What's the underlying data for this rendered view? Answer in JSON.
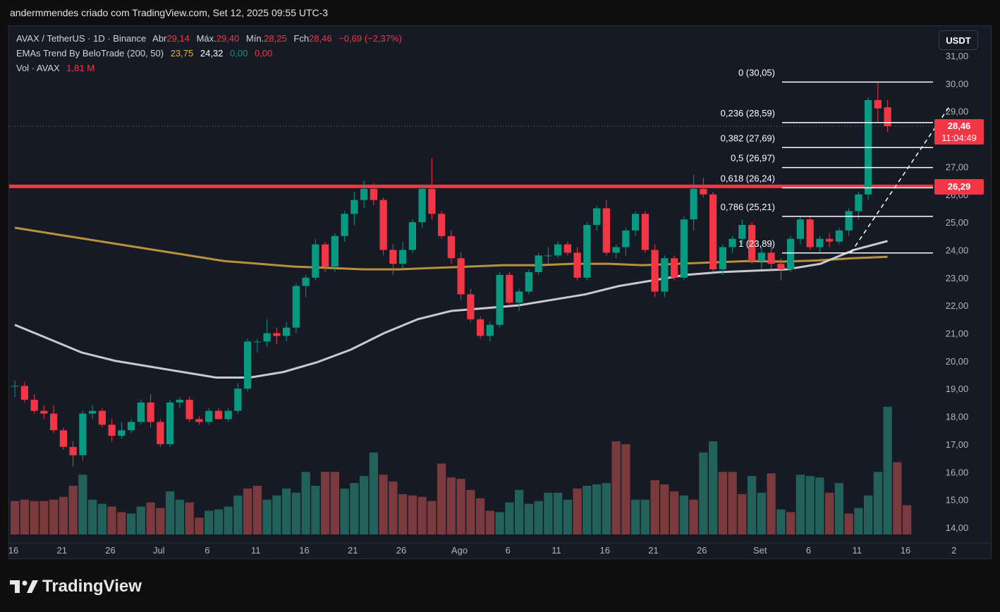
{
  "caption": "andermmendes criado com TradingView.com, Set 12, 2025 09:55 UTC-3",
  "currency": "USDT",
  "brand": "TradingView",
  "legend": {
    "symbol": "AVAX / TetherUS · 1D · Binance",
    "open_label": "Abr",
    "open": "29,14",
    "high_label": "Máx.",
    "high": "29,40",
    "low_label": "Mín.",
    "low": "28,25",
    "close_label": "Fch",
    "close": "28,46",
    "change": "−0,69 (−2,37%)",
    "ema_name": "EMAs Trend By BeloTrade (200, 50)",
    "ema_v1": "23,75",
    "ema_v2": "24,32",
    "ema_v3": "0,00",
    "ema_v4": "0,00",
    "vol_name": "Vol · AVAX",
    "vol_value": "1,81 M"
  },
  "price_tag": {
    "value": "28,46",
    "countdown": "11:04:49"
  },
  "resistance_tag": "26,29",
  "chart_data": {
    "type": "candlestick",
    "title": "AVAX / TetherUS · 1D · Binance",
    "y_ticks": [
      "31,00",
      "30,00",
      "29,00",
      "28,00",
      "27,00",
      "26,00",
      "25,00",
      "24,00",
      "23,00",
      "22,00",
      "21,00",
      "20,00",
      "19,00",
      "18,00",
      "17,00",
      "16,00",
      "15,00",
      "14,00"
    ],
    "y_tick_values": [
      31,
      30,
      29,
      28,
      27,
      26,
      25,
      24,
      23,
      22,
      21,
      20,
      19,
      18,
      17,
      16,
      15,
      14
    ],
    "x_ticks": [
      {
        "label": "16",
        "idx": 0
      },
      {
        "label": "21",
        "idx": 5
      },
      {
        "label": "26",
        "idx": 10
      },
      {
        "label": "Jul",
        "idx": 15
      },
      {
        "label": "6",
        "idx": 20
      },
      {
        "label": "11",
        "idx": 25
      },
      {
        "label": "16",
        "idx": 30
      },
      {
        "label": "21",
        "idx": 35
      },
      {
        "label": "26",
        "idx": 40
      },
      {
        "label": "Ago",
        "idx": 46
      },
      {
        "label": "6",
        "idx": 51
      },
      {
        "label": "11",
        "idx": 56
      },
      {
        "label": "16",
        "idx": 61
      },
      {
        "label": "21",
        "idx": 66
      },
      {
        "label": "26",
        "idx": 71
      },
      {
        "label": "Set",
        "idx": 77
      },
      {
        "label": "6",
        "idx": 82
      },
      {
        "label": "11",
        "idx": 87
      },
      {
        "label": "16",
        "idx": 92
      },
      {
        "label": "2",
        "idx": 97
      }
    ],
    "candles": [
      [
        19.1,
        19.3,
        18.7,
        19.1
      ],
      [
        19.1,
        19.25,
        18.5,
        18.6
      ],
      [
        18.6,
        18.8,
        18.1,
        18.2
      ],
      [
        18.2,
        18.4,
        17.9,
        18.1
      ],
      [
        18.1,
        18.4,
        17.4,
        17.5
      ],
      [
        17.5,
        17.6,
        16.8,
        16.9
      ],
      [
        16.9,
        17.1,
        16.2,
        16.6
      ],
      [
        16.6,
        18.2,
        16.4,
        18.1
      ],
      [
        18.1,
        18.4,
        17.9,
        18.2
      ],
      [
        18.2,
        18.3,
        17.6,
        17.7
      ],
      [
        17.7,
        17.9,
        17.1,
        17.3
      ],
      [
        17.3,
        17.8,
        17.2,
        17.5
      ],
      [
        17.5,
        17.9,
        17.4,
        17.8
      ],
      [
        17.8,
        18.6,
        17.7,
        18.5
      ],
      [
        18.5,
        18.8,
        17.6,
        17.8
      ],
      [
        17.8,
        17.9,
        16.9,
        17.0
      ],
      [
        17.0,
        18.6,
        16.9,
        18.5
      ],
      [
        18.5,
        18.7,
        18.3,
        18.6
      ],
      [
        18.6,
        18.7,
        17.8,
        17.9
      ],
      [
        17.9,
        18.0,
        17.7,
        17.8
      ],
      [
        17.8,
        18.3,
        17.7,
        18.2
      ],
      [
        18.2,
        18.3,
        17.9,
        17.9
      ],
      [
        17.9,
        18.3,
        17.8,
        18.2
      ],
      [
        18.2,
        19.2,
        18.1,
        19.0
      ],
      [
        19.0,
        20.8,
        18.9,
        20.7
      ],
      [
        20.7,
        20.8,
        20.3,
        20.7
      ],
      [
        20.7,
        21.5,
        20.5,
        21.0
      ],
      [
        21.0,
        21.2,
        20.6,
        20.9
      ],
      [
        20.9,
        21.4,
        20.7,
        21.2
      ],
      [
        21.2,
        22.8,
        21.0,
        22.7
      ],
      [
        22.7,
        23.1,
        22.3,
        23.0
      ],
      [
        23.0,
        24.4,
        22.9,
        24.2
      ],
      [
        24.2,
        24.3,
        23.2,
        23.4
      ],
      [
        23.4,
        24.6,
        23.2,
        24.5
      ],
      [
        24.5,
        25.4,
        24.3,
        25.3
      ],
      [
        25.3,
        26.1,
        24.9,
        25.8
      ],
      [
        25.8,
        26.5,
        25.5,
        26.2
      ],
      [
        26.2,
        26.4,
        25.6,
        25.8
      ],
      [
        25.8,
        25.9,
        23.8,
        24.0
      ],
      [
        24.0,
        24.2,
        23.1,
        23.5
      ],
      [
        23.5,
        24.3,
        23.3,
        24.0
      ],
      [
        24.0,
        25.1,
        23.9,
        25.0
      ],
      [
        25.0,
        26.3,
        24.8,
        26.2
      ],
      [
        26.2,
        27.3,
        25.1,
        25.3
      ],
      [
        25.3,
        25.4,
        24.4,
        24.5
      ],
      [
        24.5,
        24.7,
        23.5,
        23.7
      ],
      [
        23.7,
        23.9,
        22.2,
        22.4
      ],
      [
        22.4,
        22.6,
        21.4,
        21.5
      ],
      [
        21.5,
        21.6,
        20.8,
        20.9
      ],
      [
        20.9,
        21.4,
        20.7,
        21.3
      ],
      [
        21.3,
        23.2,
        21.2,
        23.1
      ],
      [
        23.1,
        23.2,
        22.0,
        22.1
      ],
      [
        22.1,
        22.6,
        21.8,
        22.5
      ],
      [
        22.5,
        23.3,
        22.4,
        23.2
      ],
      [
        23.2,
        23.9,
        23.1,
        23.8
      ],
      [
        23.8,
        24.1,
        23.5,
        23.8
      ],
      [
        23.8,
        24.3,
        23.7,
        24.2
      ],
      [
        24.2,
        24.3,
        23.8,
        23.9
      ],
      [
        23.9,
        24.1,
        22.9,
        23.0
      ],
      [
        23.0,
        25.0,
        22.9,
        24.9
      ],
      [
        24.9,
        25.6,
        24.7,
        25.5
      ],
      [
        25.5,
        25.8,
        23.8,
        23.9
      ],
      [
        23.9,
        24.2,
        23.7,
        24.1
      ],
      [
        24.1,
        24.8,
        23.8,
        24.7
      ],
      [
        24.7,
        25.4,
        24.5,
        25.3
      ],
      [
        25.3,
        25.4,
        23.9,
        24.0
      ],
      [
        24.0,
        24.2,
        22.3,
        22.5
      ],
      [
        22.5,
        23.8,
        22.3,
        23.7
      ],
      [
        23.7,
        23.8,
        22.9,
        23.0
      ],
      [
        23.0,
        25.2,
        22.9,
        25.1
      ],
      [
        25.1,
        26.7,
        24.7,
        26.2
      ],
      [
        26.2,
        26.6,
        25.9,
        26.0
      ],
      [
        26.0,
        26.1,
        23.2,
        23.3
      ],
      [
        23.3,
        24.2,
        23.1,
        24.1
      ],
      [
        24.1,
        24.5,
        23.9,
        24.4
      ],
      [
        24.4,
        25.1,
        24.2,
        24.9
      ],
      [
        24.9,
        25.0,
        23.5,
        23.6
      ],
      [
        23.6,
        24.1,
        23.3,
        23.9
      ],
      [
        23.9,
        24.2,
        23.3,
        23.5
      ],
      [
        23.5,
        23.7,
        22.9,
        23.3
      ],
      [
        23.3,
        24.5,
        23.2,
        24.4
      ],
      [
        24.4,
        25.2,
        24.2,
        25.1
      ],
      [
        25.1,
        25.2,
        24.0,
        24.1
      ],
      [
        24.1,
        24.5,
        23.9,
        24.4
      ],
      [
        24.4,
        24.6,
        24.1,
        24.3
      ],
      [
        24.3,
        24.8,
        24.2,
        24.7
      ],
      [
        24.7,
        25.5,
        24.5,
        25.4
      ],
      [
        25.4,
        26.1,
        25.1,
        26.0
      ],
      [
        26.0,
        29.5,
        25.8,
        29.4
      ],
      [
        29.4,
        30.05,
        28.6,
        29.1
      ],
      [
        29.14,
        29.4,
        28.25,
        28.46
      ]
    ],
    "ema200": [
      24.8,
      24.6,
      24.4,
      24.2,
      24.0,
      23.8,
      23.6,
      23.5,
      23.4,
      23.35,
      23.3,
      23.3,
      23.35,
      23.4,
      23.45,
      23.45,
      23.5,
      23.5,
      23.45,
      23.5,
      23.55,
      23.6,
      23.58,
      23.62,
      23.7,
      23.75
    ],
    "ema50": [
      21.3,
      20.8,
      20.3,
      20.0,
      19.8,
      19.6,
      19.4,
      19.4,
      19.6,
      19.95,
      20.4,
      21.0,
      21.5,
      21.8,
      21.9,
      22.0,
      22.2,
      22.4,
      22.7,
      22.9,
      23.1,
      23.2,
      23.25,
      23.3,
      23.5,
      24.0,
      24.32
    ],
    "volumes": [
      [
        14.95,
        "r"
      ],
      [
        15.0,
        "r"
      ],
      [
        14.95,
        "r"
      ],
      [
        14.95,
        "r"
      ],
      [
        15.0,
        "r"
      ],
      [
        15.1,
        "r"
      ],
      [
        15.5,
        "r"
      ],
      [
        15.9,
        "g"
      ],
      [
        15.0,
        "g"
      ],
      [
        14.85,
        "g"
      ],
      [
        14.75,
        "r"
      ],
      [
        14.55,
        "r"
      ],
      [
        14.5,
        "g"
      ],
      [
        14.75,
        "g"
      ],
      [
        14.9,
        "r"
      ],
      [
        14.7,
        "r"
      ],
      [
        15.3,
        "g"
      ],
      [
        15.0,
        "g"
      ],
      [
        14.9,
        "r"
      ],
      [
        14.35,
        "r"
      ],
      [
        14.6,
        "g"
      ],
      [
        14.65,
        "g"
      ],
      [
        14.75,
        "g"
      ],
      [
        15.15,
        "g"
      ],
      [
        15.4,
        "r"
      ],
      [
        15.5,
        "r"
      ],
      [
        15.0,
        "g"
      ],
      [
        15.15,
        "g"
      ],
      [
        15.4,
        "g"
      ],
      [
        15.25,
        "g"
      ],
      [
        16.0,
        "g"
      ],
      [
        15.5,
        "g"
      ],
      [
        16.0,
        "r"
      ],
      [
        16.0,
        "r"
      ],
      [
        15.4,
        "g"
      ],
      [
        15.6,
        "g"
      ],
      [
        15.85,
        "g"
      ],
      [
        16.7,
        "g"
      ],
      [
        15.9,
        "r"
      ],
      [
        15.65,
        "r"
      ],
      [
        15.2,
        "r"
      ],
      [
        15.15,
        "r"
      ],
      [
        15.1,
        "r"
      ],
      [
        14.95,
        "r"
      ],
      [
        16.3,
        "r"
      ],
      [
        15.8,
        "r"
      ],
      [
        15.75,
        "r"
      ],
      [
        15.35,
        "r"
      ],
      [
        15.05,
        "r"
      ],
      [
        14.6,
        "r"
      ],
      [
        14.55,
        "g"
      ],
      [
        14.9,
        "g"
      ],
      [
        15.35,
        "g"
      ],
      [
        14.85,
        "g"
      ],
      [
        14.95,
        "g"
      ],
      [
        15.25,
        "g"
      ],
      [
        15.25,
        "g"
      ],
      [
        15.0,
        "g"
      ],
      [
        15.4,
        "r"
      ],
      [
        15.5,
        "g"
      ],
      [
        15.55,
        "g"
      ],
      [
        15.6,
        "g"
      ],
      [
        17.1,
        "r"
      ],
      [
        17.0,
        "r"
      ],
      [
        15.0,
        "g"
      ],
      [
        15.0,
        "g"
      ],
      [
        15.7,
        "r"
      ],
      [
        15.55,
        "r"
      ],
      [
        15.3,
        "r"
      ],
      [
        15.15,
        "g"
      ],
      [
        15.0,
        "r"
      ],
      [
        16.7,
        "g"
      ],
      [
        17.1,
        "g"
      ],
      [
        16.0,
        "r"
      ],
      [
        16.0,
        "r"
      ],
      [
        15.2,
        "r"
      ],
      [
        15.85,
        "g"
      ],
      [
        15.25,
        "g"
      ],
      [
        15.95,
        "r"
      ],
      [
        14.65,
        "g"
      ],
      [
        14.55,
        "r"
      ],
      [
        15.9,
        "g"
      ],
      [
        15.85,
        "g"
      ],
      [
        15.8,
        "g"
      ],
      [
        15.25,
        "r"
      ],
      [
        15.6,
        "g"
      ],
      [
        14.5,
        "r"
      ],
      [
        14.7,
        "g"
      ],
      [
        15.15,
        "g"
      ],
      [
        16.0,
        "g"
      ],
      [
        18.35,
        "g"
      ],
      [
        16.35,
        "r"
      ],
      [
        14.8,
        "r"
      ]
    ],
    "fib_levels": [
      {
        "label": "0 (30,05)",
        "value": 30.05
      },
      {
        "label": "0,236 (28,59)",
        "value": 28.59
      },
      {
        "label": "0,382 (27,69)",
        "value": 27.69
      },
      {
        "label": "0,5 (26,97)",
        "value": 26.97
      },
      {
        "label": "0,618 (26,24)",
        "value": 26.24
      },
      {
        "label": "0,786 (25,21)",
        "value": 25.21
      },
      {
        "label": "1 (23,89)",
        "value": 23.89
      }
    ],
    "resistance": 26.29,
    "current_price": 28.46,
    "trend_line": {
      "from": [
        86,
        23.9
      ],
      "to": [
        96,
        29.2
      ]
    },
    "colors": {
      "up": "#089981",
      "down": "#f23645",
      "ema200": "#b8923a",
      "ema50": "#c9c9d0",
      "vol_up": "#22605a",
      "vol_down": "#7a3a3d",
      "resistance": "#f23645",
      "fib": "#ffffff"
    }
  }
}
